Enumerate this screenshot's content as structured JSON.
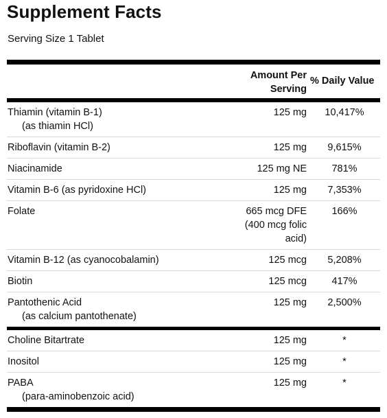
{
  "title": "Supplement Facts",
  "serving": "Serving Size 1 Tablet",
  "headers": {
    "amount_line1": "Amount Per",
    "amount_line2": "Serving",
    "daily_value": "% Daily Value"
  },
  "rows": [
    {
      "name": "Thiamin (vitamin B-1)",
      "sub": "(as thiamin HCl)",
      "amount": [
        "125 mg"
      ],
      "dv": "10,417%"
    },
    {
      "name": "Riboflavin (vitamin B-2)",
      "sub": "",
      "amount": [
        "125 mg"
      ],
      "dv": "9,615%"
    },
    {
      "name": "Niacinamide",
      "sub": "",
      "amount": [
        "125 mg NE"
      ],
      "dv": "781%"
    },
    {
      "name": "Vitamin B-6 (as pyridoxine HCl)",
      "sub": "",
      "amount": [
        "125 mg"
      ],
      "dv": "7,353%"
    },
    {
      "name": "Folate",
      "sub": "",
      "amount": [
        "665 mcg DFE",
        "(400 mcg folic",
        "acid)"
      ],
      "dv": "166%"
    },
    {
      "name": "Vitamin B-12 (as cyanocobalamin)",
      "sub": "",
      "amount": [
        "125 mcg"
      ],
      "dv": "5,208%"
    },
    {
      "name": "Biotin",
      "sub": "",
      "amount": [
        "125 mcg"
      ],
      "dv": "417%"
    },
    {
      "name": "Pantothenic Acid",
      "sub": "(as calcium pantothenate)",
      "amount": [
        "125 mg"
      ],
      "dv": "2,500%"
    },
    {
      "name": "Choline Bitartrate",
      "sub": "",
      "amount": [
        "125 mg"
      ],
      "dv": "*"
    },
    {
      "name": "Inositol",
      "sub": "",
      "amount": [
        "125 mg"
      ],
      "dv": "*"
    },
    {
      "name": "PABA",
      "sub": "(para-aminobenzoic acid)",
      "amount": [
        "125 mg"
      ],
      "dv": "*"
    }
  ]
}
